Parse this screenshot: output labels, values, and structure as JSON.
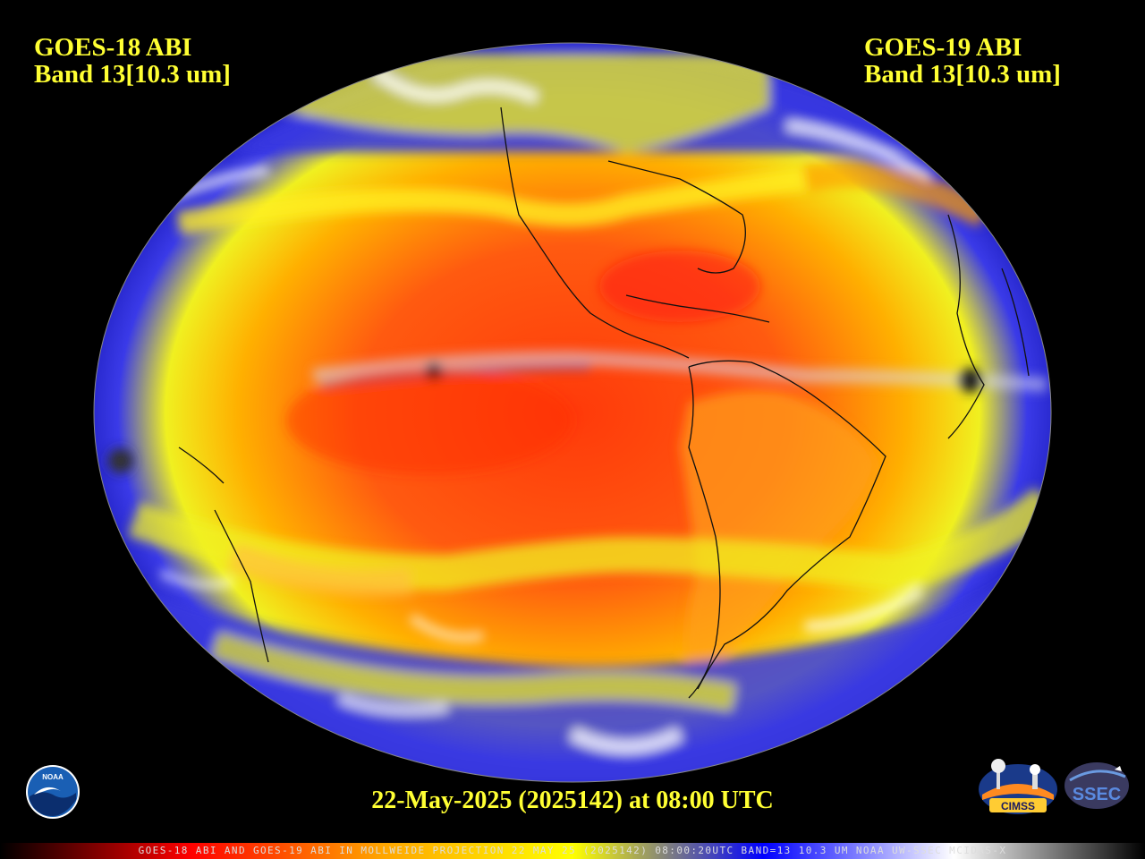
{
  "left_title": {
    "line1": "GOES-18 ABI",
    "line2": "Band 13[10.3 um]"
  },
  "right_title": {
    "line1": "GOES-19 ABI",
    "line2": "Band 13[10.3 um]"
  },
  "datestamp": "22-May-2025 (2025142) at 08:00 UTC",
  "footer": "GOES-18 ABI AND GOES-19 ABI IN MOLLWEIDE PROJECTION 22 MAY 25 (2025142) 08:00:20UTC BAND=13 10.3 UM NOAA UW-SSEC MCIDAS-X",
  "logos": {
    "noaa": "NOAA",
    "cimss": "CIMSS",
    "ssec": "SSEC"
  },
  "colorbar": [
    "#000000",
    "#ff0000",
    "#ffa500",
    "#ffff00",
    "#0000ff",
    "#ffffff",
    "#000000"
  ],
  "colors": {
    "text": "#ffff33",
    "background": "#000000",
    "ocean_warm": "#ff4a10",
    "mid": "#ffa500",
    "cool": "#ffff00",
    "cold": "#3030e0",
    "coldest": "#ffffff"
  }
}
